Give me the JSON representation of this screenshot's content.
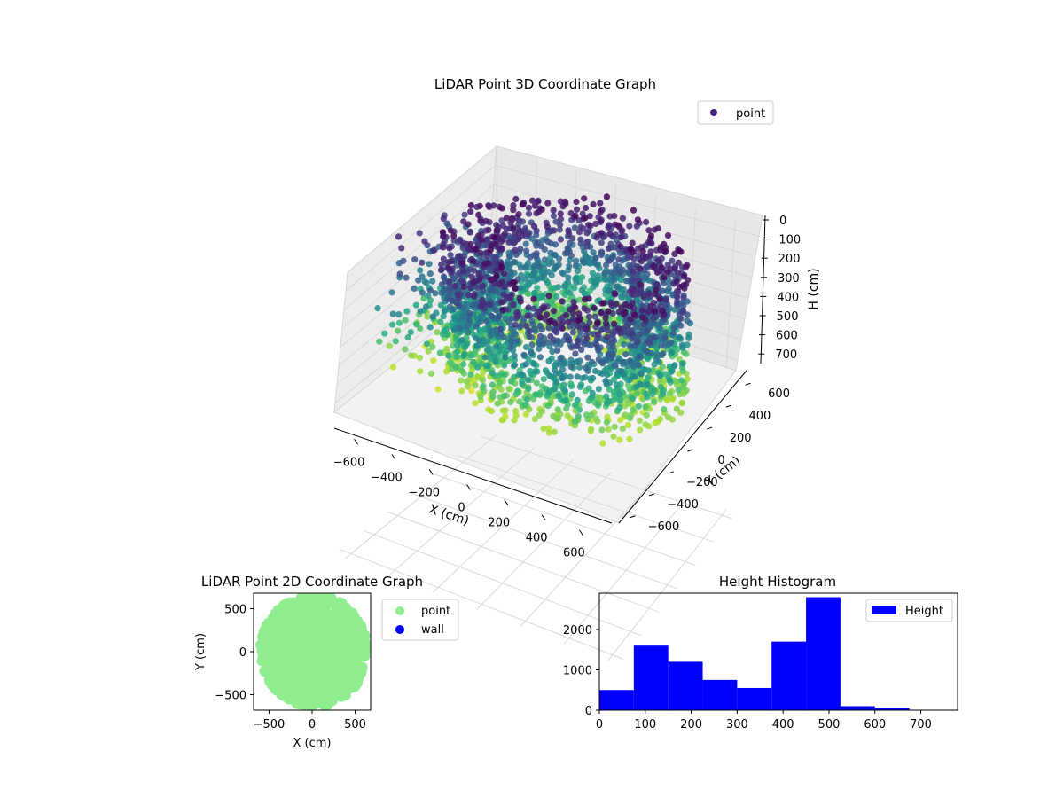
{
  "chart_data": [
    {
      "type": "scatter",
      "projection": "3d",
      "title": "LiDAR Point 3D Coordinate Graph",
      "xlabel": "X (cm)",
      "ylabel": "Y (cm)",
      "zlabel": "H (cm)",
      "xlim": [
        -650,
        650
      ],
      "ylim": [
        -650,
        650
      ],
      "zlim": [
        750,
        0
      ],
      "x_ticks": [
        -600,
        -400,
        -200,
        0,
        200,
        400,
        600
      ],
      "y_ticks": [
        -600,
        -400,
        -200,
        0,
        200,
        400,
        600
      ],
      "z_ticks": [
        0,
        100,
        200,
        300,
        400,
        500,
        600,
        700
      ],
      "grid": true,
      "colormap": "viridis",
      "series": [
        {
          "name": "point",
          "color": "#46237a",
          "description_free_structure": "ring",
          "ring_radius_range": [
            380,
            520
          ],
          "h_range": [
            0,
            700
          ]
        }
      ],
      "legend": {
        "placement": "top-right",
        "entries": [
          "point"
        ]
      }
    },
    {
      "type": "scatter",
      "title": "LiDAR Point 2D Coordinate Graph",
      "xlabel": "X (cm)",
      "ylabel": "Y (cm)",
      "xlim": [
        -680,
        680
      ],
      "ylim": [
        -680,
        680
      ],
      "x_ticks": [
        -500,
        0,
        500
      ],
      "y_ticks": [
        -500,
        0,
        500
      ],
      "series": [
        {
          "name": "point",
          "color": "#90ee90"
        },
        {
          "name": "wall",
          "color": "#0000ff"
        }
      ],
      "legend": {
        "placement": "outside-right",
        "entries": [
          "point",
          "wall"
        ]
      }
    },
    {
      "type": "bar",
      "title": "Height Histogram",
      "xlabel": "",
      "ylabel": "",
      "bin_edges": [
        0,
        75,
        150,
        225,
        300,
        375,
        450,
        525,
        600,
        675,
        750
      ],
      "values": [
        500,
        1600,
        1200,
        750,
        550,
        1700,
        2800,
        100,
        50,
        0
      ],
      "xlim": [
        0,
        780
      ],
      "ylim": [
        0,
        2900
      ],
      "x_ticks": [
        0,
        100,
        200,
        300,
        400,
        500,
        600,
        700
      ],
      "y_ticks": [
        0,
        1000,
        2000
      ],
      "series": [
        {
          "name": "Height",
          "color": "#0000ff"
        }
      ],
      "legend": {
        "placement": "top-right",
        "entries": [
          "Height"
        ]
      }
    }
  ]
}
